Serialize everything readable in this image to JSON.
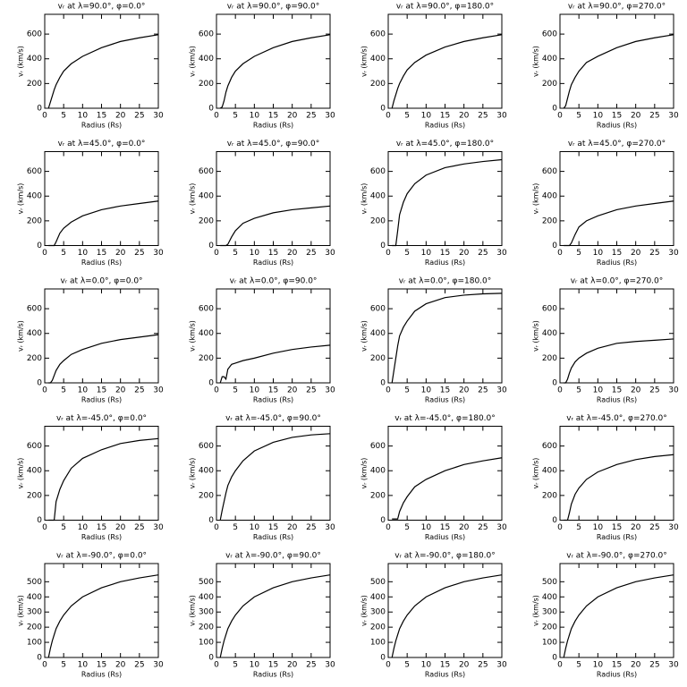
{
  "chart_data": [
    {
      "type": "line",
      "title": "vᵣ at λ=90.0°, φ=0.0°",
      "x_label": "Radius (Rs)",
      "y_label": "vᵣ (km/s)",
      "x": [
        1,
        1.5,
        2,
        2.5,
        3,
        4,
        5,
        7,
        10,
        15,
        20,
        25,
        30
      ],
      "values": [
        0,
        50,
        100,
        150,
        190,
        250,
        300,
        360,
        420,
        490,
        540,
        570,
        595
      ],
      "xlim": [
        0,
        30
      ],
      "xticks": [
        0,
        5,
        10,
        15,
        20,
        25,
        30
      ],
      "ylim": [
        0,
        760
      ],
      "yticks": [
        0,
        200,
        400,
        600
      ],
      "color": "#000000"
    },
    {
      "type": "line",
      "title": "vᵣ at λ=90.0°, φ=90.0°",
      "x_label": "Radius (Rs)",
      "y_label": "vᵣ (km/s)",
      "x": [
        1,
        1.5,
        2,
        2.5,
        3,
        4,
        5,
        7,
        10,
        15,
        20,
        25,
        30
      ],
      "values": [
        0,
        10,
        60,
        130,
        180,
        250,
        300,
        360,
        420,
        490,
        540,
        570,
        595
      ],
      "xlim": [
        0,
        30
      ],
      "xticks": [
        0,
        5,
        10,
        15,
        20,
        25,
        30
      ],
      "ylim": [
        0,
        760
      ],
      "yticks": [
        0,
        200,
        400,
        600
      ],
      "color": "#000000"
    },
    {
      "type": "line",
      "title": "vᵣ at λ=90.0°, φ=180.0°",
      "x_label": "Radius (Rs)",
      "y_label": "vᵣ (km/s)",
      "x": [
        1,
        1.5,
        2,
        2.5,
        3,
        4,
        5,
        7,
        10,
        15,
        20,
        25,
        30
      ],
      "values": [
        0,
        60,
        110,
        160,
        200,
        260,
        310,
        370,
        430,
        495,
        540,
        570,
        595
      ],
      "xlim": [
        0,
        30
      ],
      "xticks": [
        0,
        5,
        10,
        15,
        20,
        25,
        30
      ],
      "ylim": [
        0,
        760
      ],
      "yticks": [
        0,
        200,
        400,
        600
      ],
      "color": "#000000"
    },
    {
      "type": "line",
      "title": "vᵣ at λ=90.0°, φ=270.0°",
      "x_label": "Radius (Rs)",
      "y_label": "vᵣ (km/s)",
      "x": [
        1,
        1.5,
        2,
        2.5,
        3,
        4,
        5,
        7,
        10,
        15,
        20,
        25,
        30
      ],
      "values": [
        0,
        20,
        80,
        140,
        190,
        250,
        300,
        370,
        420,
        490,
        540,
        570,
        595
      ],
      "xlim": [
        0,
        30
      ],
      "xticks": [
        0,
        5,
        10,
        15,
        20,
        25,
        30
      ],
      "ylim": [
        0,
        760
      ],
      "yticks": [
        0,
        200,
        400,
        600
      ],
      "color": "#000000"
    },
    {
      "type": "line",
      "title": "vᵣ at λ=45.0°, φ=0.0°",
      "x_label": "Radius (Rs)",
      "y_label": "vᵣ (km/s)",
      "x": [
        1,
        1.5,
        2,
        2.5,
        3,
        4,
        5,
        7,
        10,
        15,
        20,
        25,
        30
      ],
      "values": [
        0,
        0,
        0,
        0,
        30,
        100,
        140,
        190,
        240,
        290,
        320,
        340,
        360
      ],
      "xlim": [
        0,
        30
      ],
      "xticks": [
        0,
        5,
        10,
        15,
        20,
        25,
        30
      ],
      "ylim": [
        0,
        760
      ],
      "yticks": [
        0,
        200,
        400,
        600
      ],
      "color": "#000000"
    },
    {
      "type": "line",
      "title": "vᵣ at λ=45.0°, φ=90.0°",
      "x_label": "Radius (Rs)",
      "y_label": "vᵣ (km/s)",
      "x": [
        1,
        1.5,
        2,
        2.5,
        3,
        4,
        5,
        7,
        10,
        15,
        20,
        25,
        30
      ],
      "values": [
        0,
        0,
        0,
        0,
        10,
        70,
        120,
        180,
        220,
        265,
        290,
        305,
        320
      ],
      "xlim": [
        0,
        30
      ],
      "xticks": [
        0,
        5,
        10,
        15,
        20,
        25,
        30
      ],
      "ylim": [
        0,
        760
      ],
      "yticks": [
        0,
        200,
        400,
        600
      ],
      "color": "#000000"
    },
    {
      "type": "line",
      "title": "vᵣ at λ=45.0°, φ=180.0°",
      "x_label": "Radius (Rs)",
      "y_label": "vᵣ (km/s)",
      "x": [
        1,
        1.5,
        2,
        2.5,
        3,
        4,
        5,
        7,
        10,
        15,
        20,
        25,
        30
      ],
      "values": [
        0,
        0,
        0,
        120,
        250,
        350,
        420,
        500,
        570,
        630,
        660,
        680,
        695
      ],
      "xlim": [
        0,
        30
      ],
      "xticks": [
        0,
        5,
        10,
        15,
        20,
        25,
        30
      ],
      "ylim": [
        0,
        760
      ],
      "yticks": [
        0,
        200,
        400,
        600
      ],
      "color": "#000000"
    },
    {
      "type": "line",
      "title": "vᵣ at λ=45.0°, φ=270.0°",
      "x_label": "Radius (Rs)",
      "y_label": "vᵣ (km/s)",
      "x": [
        1,
        1.5,
        2,
        2.5,
        3,
        4,
        5,
        7,
        10,
        15,
        20,
        25,
        30
      ],
      "values": [
        0,
        0,
        0,
        0,
        20,
        90,
        150,
        200,
        240,
        290,
        320,
        340,
        360
      ],
      "xlim": [
        0,
        30
      ],
      "xticks": [
        0,
        5,
        10,
        15,
        20,
        25,
        30
      ],
      "ylim": [
        0,
        760
      ],
      "yticks": [
        0,
        200,
        400,
        600
      ],
      "color": "#000000"
    },
    {
      "type": "line",
      "title": "vᵣ at λ=0.0°, φ=0.0°",
      "x_label": "Radius (Rs)",
      "y_label": "vᵣ (km/s)",
      "x": [
        1,
        1.5,
        2,
        2.5,
        3,
        4,
        5,
        7,
        10,
        15,
        20,
        25,
        30
      ],
      "values": [
        0,
        0,
        20,
        60,
        100,
        150,
        180,
        230,
        270,
        320,
        350,
        370,
        390
      ],
      "xlim": [
        0,
        30
      ],
      "xticks": [
        0,
        5,
        10,
        15,
        20,
        25,
        30
      ],
      "ylim": [
        0,
        760
      ],
      "yticks": [
        0,
        200,
        400,
        600
      ],
      "color": "#000000"
    },
    {
      "type": "line",
      "title": "vᵣ at λ=0.0°, φ=90.0°",
      "x_label": "Radius (Rs)",
      "y_label": "vᵣ (km/s)",
      "x": [
        1,
        1.5,
        2,
        2.5,
        3,
        4,
        5,
        7,
        10,
        15,
        20,
        25,
        30
      ],
      "values": [
        0,
        50,
        50,
        30,
        110,
        150,
        160,
        180,
        200,
        240,
        270,
        290,
        305
      ],
      "xlim": [
        0,
        30
      ],
      "xticks": [
        0,
        5,
        10,
        15,
        20,
        25,
        30
      ],
      "ylim": [
        0,
        760
      ],
      "yticks": [
        0,
        200,
        400,
        600
      ],
      "color": "#000000"
    },
    {
      "type": "line",
      "title": "vᵣ at λ=0.0°, φ=180.0°",
      "x_label": "Radius (Rs)",
      "y_label": "vᵣ (km/s)",
      "x": [
        1,
        1.5,
        2,
        2.5,
        3,
        4,
        5,
        7,
        10,
        15,
        20,
        25,
        30
      ],
      "values": [
        0,
        100,
        200,
        300,
        380,
        450,
        500,
        580,
        640,
        690,
        710,
        720,
        725
      ],
      "xlim": [
        0,
        30
      ],
      "xticks": [
        0,
        5,
        10,
        15,
        20,
        25,
        30
      ],
      "ylim": [
        0,
        760
      ],
      "yticks": [
        0,
        200,
        400,
        600
      ],
      "color": "#000000"
    },
    {
      "type": "line",
      "title": "vᵣ at λ=0.0°, φ=270.0°",
      "x_label": "Radius (Rs)",
      "y_label": "vᵣ (km/s)",
      "x": [
        1,
        1.5,
        2,
        2.5,
        3,
        4,
        5,
        7,
        10,
        15,
        20,
        25,
        30
      ],
      "values": [
        0,
        0,
        30,
        80,
        120,
        170,
        200,
        240,
        280,
        320,
        335,
        345,
        355
      ],
      "xlim": [
        0,
        30
      ],
      "xticks": [
        0,
        5,
        10,
        15,
        20,
        25,
        30
      ],
      "ylim": [
        0,
        760
      ],
      "yticks": [
        0,
        200,
        400,
        600
      ],
      "color": "#000000"
    },
    {
      "type": "line",
      "title": "vᵣ at λ=-45.0°, φ=0.0°",
      "x_label": "Radius (Rs)",
      "y_label": "vᵣ (km/s)",
      "x": [
        1,
        1.5,
        2,
        2.5,
        3,
        4,
        5,
        7,
        10,
        15,
        20,
        25,
        30
      ],
      "values": [
        0,
        0,
        0,
        0,
        150,
        250,
        320,
        420,
        500,
        570,
        620,
        645,
        660
      ],
      "xlim": [
        0,
        30
      ],
      "xticks": [
        0,
        5,
        10,
        15,
        20,
        25,
        30
      ],
      "ylim": [
        0,
        760
      ],
      "yticks": [
        0,
        200,
        400,
        600
      ],
      "color": "#000000"
    },
    {
      "type": "line",
      "title": "vᵣ at λ=-45.0°, φ=90.0°",
      "x_label": "Radius (Rs)",
      "y_label": "vᵣ (km/s)",
      "x": [
        1,
        1.5,
        2,
        2.5,
        3,
        4,
        5,
        7,
        10,
        15,
        20,
        25,
        30
      ],
      "values": [
        0,
        80,
        150,
        220,
        280,
        350,
        400,
        480,
        560,
        630,
        670,
        690,
        700
      ],
      "xlim": [
        0,
        30
      ],
      "xticks": [
        0,
        5,
        10,
        15,
        20,
        25,
        30
      ],
      "ylim": [
        0,
        760
      ],
      "yticks": [
        0,
        200,
        400,
        600
      ],
      "color": "#000000"
    },
    {
      "type": "line",
      "title": "vᵣ at λ=-45.0°, φ=180.0°",
      "x_label": "Radius (Rs)",
      "y_label": "vᵣ (km/s)",
      "x": [
        1,
        1.5,
        2,
        2.5,
        3,
        4,
        5,
        7,
        10,
        15,
        20,
        25,
        30
      ],
      "values": [
        10,
        10,
        10,
        10,
        70,
        140,
        190,
        270,
        330,
        400,
        450,
        480,
        505
      ],
      "xlim": [
        0,
        30
      ],
      "xticks": [
        0,
        5,
        10,
        15,
        20,
        25,
        30
      ],
      "ylim": [
        0,
        760
      ],
      "yticks": [
        0,
        200,
        400,
        600
      ],
      "color": "#000000"
    },
    {
      "type": "line",
      "title": "vᵣ at λ=-45.0°, φ=270.0°",
      "x_label": "Radius (Rs)",
      "y_label": "vᵣ (km/s)",
      "x": [
        1,
        1.5,
        2,
        2.5,
        3,
        4,
        5,
        7,
        10,
        15,
        20,
        25,
        30
      ],
      "values": [
        0,
        0,
        0,
        60,
        130,
        210,
        260,
        330,
        390,
        450,
        490,
        515,
        530
      ],
      "xlim": [
        0,
        30
      ],
      "xticks": [
        0,
        5,
        10,
        15,
        20,
        25,
        30
      ],
      "ylim": [
        0,
        760
      ],
      "yticks": [
        0,
        200,
        400,
        600
      ],
      "color": "#000000"
    },
    {
      "type": "line",
      "title": "vᵣ at λ=-90.0°, φ=0.0°",
      "x_label": "Radius (Rs)",
      "y_label": "vᵣ (km/s)",
      "x": [
        1,
        1.5,
        2,
        2.5,
        3,
        4,
        5,
        7,
        10,
        15,
        20,
        25,
        30
      ],
      "values": [
        0,
        60,
        110,
        150,
        190,
        240,
        280,
        340,
        400,
        460,
        500,
        525,
        545
      ],
      "xlim": [
        0,
        30
      ],
      "xticks": [
        0,
        5,
        10,
        15,
        20,
        25,
        30
      ],
      "ylim": [
        0,
        620
      ],
      "yticks": [
        0,
        100,
        200,
        300,
        400,
        500
      ],
      "color": "#000000"
    },
    {
      "type": "line",
      "title": "vᵣ at λ=-90.0°, φ=90.0°",
      "x_label": "Radius (Rs)",
      "y_label": "vᵣ (km/s)",
      "x": [
        1,
        1.5,
        2,
        2.5,
        3,
        4,
        5,
        7,
        10,
        15,
        20,
        25,
        30
      ],
      "values": [
        0,
        60,
        110,
        150,
        190,
        240,
        280,
        340,
        400,
        460,
        500,
        525,
        545
      ],
      "xlim": [
        0,
        30
      ],
      "xticks": [
        0,
        5,
        10,
        15,
        20,
        25,
        30
      ],
      "ylim": [
        0,
        620
      ],
      "yticks": [
        0,
        100,
        200,
        300,
        400,
        500
      ],
      "color": "#000000"
    },
    {
      "type": "line",
      "title": "vᵣ at λ=-90.0°, φ=180.0°",
      "x_label": "Radius (Rs)",
      "y_label": "vᵣ (km/s)",
      "x": [
        1,
        1.5,
        2,
        2.5,
        3,
        4,
        5,
        7,
        10,
        15,
        20,
        25,
        30
      ],
      "values": [
        0,
        60,
        110,
        150,
        190,
        240,
        280,
        340,
        400,
        460,
        500,
        525,
        545
      ],
      "xlim": [
        0,
        30
      ],
      "xticks": [
        0,
        5,
        10,
        15,
        20,
        25,
        30
      ],
      "ylim": [
        0,
        620
      ],
      "yticks": [
        0,
        100,
        200,
        300,
        400,
        500
      ],
      "color": "#000000"
    },
    {
      "type": "line",
      "title": "vᵣ at λ=-90.0°, φ=270.0°",
      "x_label": "Radius (Rs)",
      "y_label": "vᵣ (km/s)",
      "x": [
        1,
        1.5,
        2,
        2.5,
        3,
        4,
        5,
        7,
        10,
        15,
        20,
        25,
        30
      ],
      "values": [
        0,
        60,
        110,
        150,
        190,
        240,
        280,
        340,
        400,
        460,
        500,
        525,
        545
      ],
      "xlim": [
        0,
        30
      ],
      "xticks": [
        0,
        5,
        10,
        15,
        20,
        25,
        30
      ],
      "ylim": [
        0,
        620
      ],
      "yticks": [
        0,
        100,
        200,
        300,
        400,
        500
      ],
      "color": "#000000"
    }
  ]
}
